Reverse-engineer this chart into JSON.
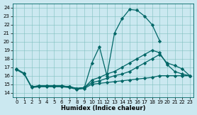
{
  "xlabel": "Humidex (Indice chaleur)",
  "bg_color": "#cbe8f0",
  "line_color": "#006666",
  "grid_color": "#7fbfbf",
  "xlim": [
    -0.5,
    23.5
  ],
  "ylim": [
    13.5,
    24.5
  ],
  "yticks": [
    14,
    15,
    16,
    17,
    18,
    19,
    20,
    21,
    22,
    23,
    24
  ],
  "xticks": [
    0,
    1,
    2,
    3,
    4,
    5,
    6,
    7,
    8,
    9,
    10,
    11,
    12,
    13,
    14,
    15,
    16,
    17,
    18,
    19,
    20,
    21,
    22,
    23
  ],
  "series": [
    {
      "x": [
        0,
        1,
        2,
        3,
        4,
        5,
        6,
        7,
        8,
        9,
        10,
        11,
        12,
        13,
        14,
        15,
        16,
        17,
        18,
        19
      ],
      "y": [
        16.8,
        16.3,
        14.7,
        14.8,
        14.8,
        14.8,
        14.8,
        14.7,
        14.5,
        14.6,
        17.5,
        19.4,
        16.0,
        21.0,
        22.7,
        23.8,
        23.7,
        23.0,
        22.0,
        20.1
      ]
    },
    {
      "x": [
        0,
        1,
        2,
        3,
        4,
        5,
        6,
        7,
        8,
        9,
        10,
        11,
        12,
        13,
        14,
        15,
        16,
        17,
        18,
        19,
        20,
        21,
        22,
        23
      ],
      "y": [
        16.7,
        16.2,
        14.6,
        14.7,
        14.7,
        14.7,
        14.7,
        14.6,
        14.4,
        14.5,
        15.0,
        15.1,
        15.2,
        15.3,
        15.4,
        15.5,
        15.6,
        15.7,
        15.8,
        16.0,
        16.0,
        16.0,
        16.0,
        16.0
      ]
    },
    {
      "x": [
        2,
        3,
        4,
        5,
        6,
        7,
        8,
        9,
        10,
        11,
        12,
        13,
        14,
        15,
        16,
        17,
        18,
        19,
        20,
        21,
        22,
        23
      ],
      "y": [
        14.7,
        14.8,
        14.8,
        14.8,
        14.8,
        14.7,
        14.5,
        14.6,
        15.5,
        15.8,
        16.2,
        16.5,
        17.0,
        17.5,
        18.0,
        18.5,
        19.0,
        18.7,
        17.3,
        16.5,
        16.2,
        16.0
      ]
    },
    {
      "x": [
        2,
        3,
        4,
        5,
        6,
        7,
        8,
        9,
        10,
        11,
        12,
        13,
        14,
        15,
        16,
        17,
        18,
        19,
        20,
        21,
        22,
        23
      ],
      "y": [
        14.7,
        14.8,
        14.8,
        14.8,
        14.8,
        14.7,
        14.5,
        14.6,
        15.2,
        15.4,
        15.7,
        16.0,
        16.2,
        16.5,
        17.0,
        17.5,
        18.0,
        18.5,
        17.5,
        17.2,
        16.8,
        16.0
      ]
    }
  ]
}
